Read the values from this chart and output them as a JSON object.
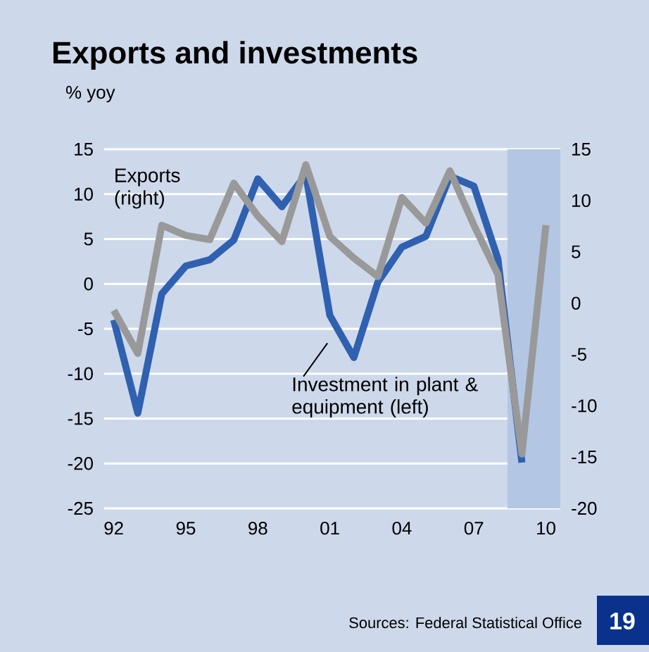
{
  "chart_data": {
    "type": "line",
    "title": "Exports and investments",
    "subtitle": "% yoy",
    "x": [
      1992,
      1993,
      1994,
      1995,
      1996,
      1997,
      1998,
      1999,
      2000,
      2001,
      2002,
      2003,
      2004,
      2005,
      2006,
      2007,
      2008,
      2009,
      2010
    ],
    "xlim": [
      1991.6,
      2010.6
    ],
    "xticks": [
      {
        "value": 1992,
        "label": "92"
      },
      {
        "value": 1995,
        "label": "95"
      },
      {
        "value": 1998,
        "label": "98"
      },
      {
        "value": 2001,
        "label": "01"
      },
      {
        "value": 2004,
        "label": "04"
      },
      {
        "value": 2007,
        "label": "07"
      },
      {
        "value": 2010,
        "label": "10"
      }
    ],
    "ylim": [
      -25,
      15
    ],
    "yticks": [
      -25,
      -20,
      -15,
      -10,
      -5,
      0,
      5,
      10,
      15
    ],
    "y2lim": [
      -20,
      15
    ],
    "y2ticks": [
      -20,
      -15,
      -10,
      -5,
      0,
      5,
      10,
      15
    ],
    "grid": "y",
    "marker": "none",
    "line_style": "solid",
    "bands": [
      {
        "axis": "x",
        "from": 2008.4,
        "to": 2010.6,
        "color": "#b3c6e3"
      }
    ],
    "series": [
      {
        "name": "Investment in plant & equipment (left)",
        "color": "#3060b0",
        "axis": "y",
        "values": [
          -4,
          -14.4,
          -1.1,
          2,
          2.7,
          4.9,
          11.7,
          8.6,
          12.2,
          -3.5,
          -8.2,
          0.2,
          4.1,
          5.3,
          12,
          10.9,
          2.8,
          -19.9,
          null
        ]
      },
      {
        "name": "Exports (right)",
        "color": "#999999",
        "axis": "y2",
        "values": [
          -0.7,
          -4.9,
          7.6,
          6.6,
          6.2,
          11.7,
          8.5,
          6,
          13.5,
          6.5,
          4.4,
          2.6,
          10.3,
          7.8,
          12.9,
          7.6,
          2.8,
          -14.7,
          7.6
        ]
      }
    ],
    "annotations": [
      "Sources: Federal Statistical Office",
      "19"
    ]
  }
}
